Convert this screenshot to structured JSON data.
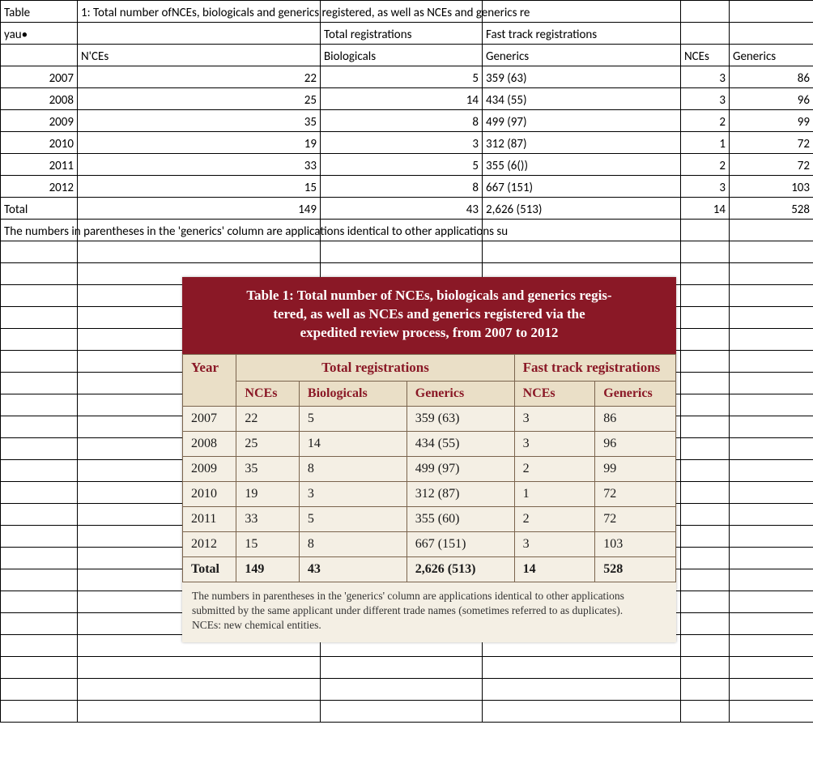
{
  "sheet": {
    "title_row": {
      "a": "Table",
      "b_overflow": "1: Total number ofNCEs, biologicals and generics registered, as well as NCEs and generics re"
    },
    "row2": {
      "a": "yau•",
      "c": "Total registrations",
      "d": "Fast track registrations"
    },
    "row3": {
      "b": "N'CEs",
      "c": "Biologicals",
      "d": "Generics",
      "e": "NCEs",
      "f": "Generics"
    },
    "data": [
      {
        "year": "2007",
        "nces": "22",
        "bio": "5",
        "gen": "359 (63)",
        "ft_nces": "3",
        "ft_gen": "86"
      },
      {
        "year": "2008",
        "nces": "25",
        "bio": "14",
        "gen": "434 (55)",
        "ft_nces": "3",
        "ft_gen": "96"
      },
      {
        "year": "2009",
        "nces": "35",
        "bio": "8",
        "gen": "499 (97)",
        "ft_nces": "2",
        "ft_gen": "99"
      },
      {
        "year": "2010",
        "nces": "19",
        "bio": "3",
        "gen": "312 (87)",
        "ft_nces": "1",
        "ft_gen": "72"
      },
      {
        "year": "2011",
        "nces": "33",
        "bio": "5",
        "gen": "355 (6())",
        "ft_nces": "2",
        "ft_gen": "72"
      },
      {
        "year": "2012",
        "nces": "15",
        "bio": "8",
        "gen": "667 (151)",
        "ft_nces": "3",
        "ft_gen": "103"
      }
    ],
    "total": {
      "label": "Total",
      "nces": "149",
      "bio": "43",
      "gen": "2,626 (513)",
      "ft_nces": "14",
      "ft_gen": "528"
    },
    "footnote": "The numbers in parentheses in the 'generics' column are applications identical to other applications su",
    "blank_rows_after": 22
  },
  "embed": {
    "title": "Table 1: Total number of NCEs, biologicals and generics regis-\ntered, as well as NCEs and generics registered via the\nexpedited review process, from 2007 to 2012",
    "group_headers": {
      "year": "Year",
      "total": "Total registrations",
      "fast": "Fast track registrations"
    },
    "sub_headers": {
      "nces": "NCEs",
      "bio": "Biologicals",
      "gen": "Generics",
      "ft_nces": "NCEs",
      "ft_gen": "Generics"
    },
    "rows": [
      {
        "year": "2007",
        "nces": "22",
        "bio": "5",
        "gen": "359 (63)",
        "ft_nces": "3",
        "ft_gen": "86"
      },
      {
        "year": "2008",
        "nces": "25",
        "bio": "14",
        "gen": "434 (55)",
        "ft_nces": "3",
        "ft_gen": "96"
      },
      {
        "year": "2009",
        "nces": "35",
        "bio": "8",
        "gen": "499 (97)",
        "ft_nces": "2",
        "ft_gen": "99"
      },
      {
        "year": "2010",
        "nces": "19",
        "bio": "3",
        "gen": "312 (87)",
        "ft_nces": "1",
        "ft_gen": "72"
      },
      {
        "year": "2011",
        "nces": "33",
        "bio": "5",
        "gen": "355 (60)",
        "ft_nces": "2",
        "ft_gen": "72"
      },
      {
        "year": "2012",
        "nces": "15",
        "bio": "8",
        "gen": "667 (151)",
        "ft_nces": "3",
        "ft_gen": "103"
      }
    ],
    "total": {
      "label": "Total",
      "nces": "149",
      "bio": "43",
      "gen": "2,626 (513)",
      "ft_nces": "14",
      "ft_gen": "528"
    },
    "footnote1": "The numbers in parentheses in the 'generics' column are applications identical to other applications submitted by the same applicant under different trade names (sometimes referred to as duplicates).",
    "footnote2": "NCEs: new chemical entities.",
    "colors": {
      "header_bg": "#8a1826",
      "header_fg": "#ffffff",
      "thead_bg": "#eadfc7",
      "thead_fg": "#8a1826",
      "body_bg": "#f4efe4",
      "border": "#7a644d"
    }
  }
}
